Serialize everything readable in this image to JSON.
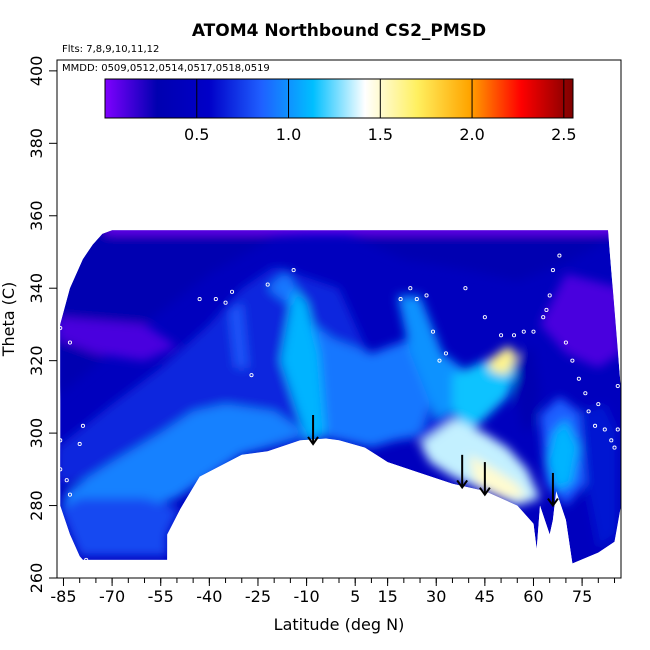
{
  "chart_data": {
    "type": "heatmap",
    "title": "ATOM4 Northbound CS2_PMSD",
    "notes": [
      "Flts: 7,8,9,10,11,12",
      "MMDD: 0509,0512,0514,0517,0518,0519"
    ],
    "xlabel": "Latitude (deg N)",
    "ylabel": "Theta (C)",
    "xlim": [
      -87,
      87
    ],
    "ylim": [
      260,
      403
    ],
    "x_ticks": [
      -85,
      -70,
      -55,
      -40,
      -25,
      -10,
      5,
      15,
      30,
      45,
      60,
      75
    ],
    "y_ticks": [
      260,
      280,
      300,
      320,
      340,
      360,
      380,
      400
    ],
    "colorbar": {
      "range": [
        0,
        2.55
      ],
      "ticks": [
        0.5,
        1.0,
        1.5,
        2.0,
        2.5
      ],
      "tick_labels": [
        "0.5",
        "1.0",
        "1.5",
        "2.0",
        "2.5"
      ],
      "colors": [
        "#7f00ff",
        "#0000b0",
        "#0000c8",
        "#1f5fff",
        "#00bfff",
        "#ffffff",
        "#fff060",
        "#ffa500",
        "#ff0000",
        "#7f0000"
      ]
    },
    "top_boundary": [
      [
        -86,
        330
      ],
      [
        -83,
        340
      ],
      [
        -79,
        348
      ],
      [
        -76,
        352
      ],
      [
        -73,
        355
      ],
      [
        -70,
        356
      ],
      [
        83,
        356
      ],
      [
        87,
        312
      ]
    ],
    "bottom_boundary": [
      [
        -86,
        280
      ],
      [
        -83,
        272
      ],
      [
        -80,
        266
      ],
      [
        -79,
        265
      ],
      [
        -53,
        265
      ],
      [
        -53,
        272
      ],
      [
        -49,
        279
      ],
      [
        -43,
        288
      ],
      [
        -30,
        294
      ],
      [
        -22,
        295
      ],
      [
        -12,
        298
      ],
      [
        -4,
        298.5
      ],
      [
        0,
        298
      ],
      [
        8,
        296
      ],
      [
        15,
        292
      ],
      [
        25,
        289
      ],
      [
        35,
        286
      ],
      [
        45,
        284
      ],
      [
        55,
        280
      ],
      [
        60,
        275
      ],
      [
        61,
        268
      ],
      [
        62,
        280
      ],
      [
        65,
        272
      ],
      [
        66,
        276
      ],
      [
        67,
        284
      ],
      [
        70,
        276
      ],
      [
        72,
        264
      ],
      [
        80,
        267
      ],
      [
        85,
        270
      ],
      [
        87,
        280
      ]
    ],
    "regions": [
      {
        "value": 0.3,
        "points": [
          [
            -87,
            310
          ],
          [
            -60,
            330
          ],
          [
            -40,
            344
          ],
          [
            -20,
            354
          ],
          [
            0,
            356
          ],
          [
            20,
            348
          ],
          [
            40,
            345
          ],
          [
            55,
            342
          ],
          [
            70,
            347
          ],
          [
            87,
            355
          ],
          [
            87,
            360
          ],
          [
            -87,
            360
          ]
        ]
      },
      {
        "value": 0.12,
        "points": [
          [
            -87,
            326
          ],
          [
            -75,
            322
          ],
          [
            -60,
            320
          ],
          [
            -50,
            324
          ],
          [
            -60,
            330
          ],
          [
            -87,
            332
          ]
        ]
      },
      {
        "value": 0.12,
        "points": [
          [
            62,
            330
          ],
          [
            70,
            322
          ],
          [
            80,
            318
          ],
          [
            87,
            322
          ],
          [
            87,
            340
          ],
          [
            70,
            344
          ]
        ]
      },
      {
        "value": 0.05,
        "points": [
          [
            -72,
            358
          ],
          [
            87,
            358
          ],
          [
            87,
            355
          ],
          [
            -72,
            355
          ]
        ]
      },
      {
        "value": 0.68,
        "points": [
          [
            -87,
            296
          ],
          [
            -70,
            308
          ],
          [
            -55,
            318
          ],
          [
            -40,
            330
          ],
          [
            -30,
            340
          ],
          [
            -20,
            346
          ],
          [
            0,
            340
          ],
          [
            10,
            320
          ],
          [
            20,
            312
          ],
          [
            30,
            310
          ],
          [
            40,
            300
          ],
          [
            30,
            298
          ],
          [
            0,
            298
          ],
          [
            -30,
            294
          ],
          [
            -87,
            286
          ]
        ]
      },
      {
        "value": 0.95,
        "points": [
          [
            -84,
            284
          ],
          [
            -70,
            292
          ],
          [
            -55,
            300
          ],
          [
            -45,
            306
          ],
          [
            -35,
            308
          ],
          [
            -20,
            306
          ],
          [
            -10,
            300
          ],
          [
            -30,
            294
          ],
          [
            -50,
            282
          ],
          [
            -70,
            276
          ],
          [
            -86,
            278
          ]
        ]
      },
      {
        "value": 0.78,
        "points": [
          [
            -86,
            279
          ],
          [
            -80,
            266
          ],
          [
            -53,
            266
          ],
          [
            -53,
            272
          ],
          [
            -49,
            279
          ],
          [
            -60,
            282
          ],
          [
            -80,
            282
          ]
        ]
      },
      {
        "value": 0.92,
        "points": [
          [
            -22,
            340
          ],
          [
            -16,
            345
          ],
          [
            -8,
            330
          ],
          [
            -5,
            300
          ],
          [
            0,
            298
          ],
          [
            10,
            296
          ],
          [
            25,
            300
          ],
          [
            32,
            318
          ],
          [
            22,
            326
          ],
          [
            10,
            322
          ],
          [
            -2,
            326
          ]
        ]
      },
      {
        "value": 1.1,
        "points": [
          [
            -14,
            340
          ],
          [
            -10,
            336
          ],
          [
            -6,
            322
          ],
          [
            -4,
            300
          ],
          [
            -10,
            298
          ],
          [
            -18,
            320
          ]
        ]
      },
      {
        "value": 0.82,
        "points": [
          [
            -34,
            334
          ],
          [
            -30,
            336
          ],
          [
            -28,
            318
          ],
          [
            -32,
            318
          ]
        ]
      },
      {
        "value": 1.0,
        "points": [
          [
            18,
            338
          ],
          [
            25,
            338
          ],
          [
            32,
            322
          ],
          [
            38,
            318
          ],
          [
            42,
            308
          ],
          [
            30,
            304
          ],
          [
            22,
            322
          ]
        ]
      },
      {
        "value": 1.15,
        "points": [
          [
            35,
            316
          ],
          [
            45,
            320
          ],
          [
            52,
            322
          ],
          [
            56,
            320
          ],
          [
            52,
            310
          ],
          [
            45,
            304
          ],
          [
            40,
            300
          ],
          [
            35,
            306
          ]
        ]
      },
      {
        "value": 1.35,
        "points": [
          [
            36,
            304
          ],
          [
            45,
            300
          ],
          [
            52,
            296
          ],
          [
            58,
            290
          ],
          [
            62,
            282
          ],
          [
            55,
            280
          ],
          [
            45,
            284
          ],
          [
            35,
            288
          ],
          [
            28,
            292
          ],
          [
            25,
            297
          ]
        ]
      },
      {
        "value": 1.5,
        "points": [
          [
            40,
            294
          ],
          [
            48,
            290
          ],
          [
            55,
            286
          ],
          [
            58,
            282
          ],
          [
            50,
            282
          ],
          [
            42,
            286
          ]
        ]
      },
      {
        "value": 1.62,
        "points": [
          [
            46,
            320
          ],
          [
            52,
            324
          ],
          [
            55,
            322
          ],
          [
            52,
            316
          ],
          [
            47,
            317
          ]
        ]
      },
      {
        "value": 0.3,
        "points": [
          [
            54,
            320
          ],
          [
            60,
            324
          ],
          [
            62,
            312
          ],
          [
            60,
            302
          ],
          [
            57,
            300
          ],
          [
            55,
            308
          ]
        ]
      },
      {
        "value": 0.85,
        "points": [
          [
            62,
            305
          ],
          [
            68,
            310
          ],
          [
            74,
            306
          ],
          [
            80,
            296
          ],
          [
            76,
            286
          ],
          [
            70,
            280
          ],
          [
            64,
            286
          ]
        ]
      },
      {
        "value": 0.62,
        "points": [
          [
            74,
            306
          ],
          [
            82,
            308
          ],
          [
            86,
            300
          ],
          [
            86,
            272
          ],
          [
            80,
            268
          ],
          [
            76,
            286
          ]
        ]
      },
      {
        "value": 1.1,
        "points": [
          [
            66,
            300
          ],
          [
            70,
            304
          ],
          [
            74,
            296
          ],
          [
            72,
            286
          ],
          [
            67,
            284
          ],
          [
            64,
            292
          ]
        ]
      }
    ],
    "obs_points": [
      [
        -86,
        329
      ],
      [
        -83,
        325
      ],
      [
        -86,
        298
      ],
      [
        -86,
        290
      ],
      [
        -83,
        283
      ],
      [
        -80,
        297
      ],
      [
        -79,
        302
      ],
      [
        -84,
        287
      ],
      [
        -78,
        265
      ],
      [
        -43,
        337
      ],
      [
        -38,
        337
      ],
      [
        -35,
        336
      ],
      [
        -33,
        339
      ],
      [
        -27,
        316
      ],
      [
        -22,
        341
      ],
      [
        -14,
        345
      ],
      [
        19,
        337
      ],
      [
        22,
        340
      ],
      [
        24,
        337
      ],
      [
        27,
        338
      ],
      [
        29,
        328
      ],
      [
        31,
        320
      ],
      [
        33,
        322
      ],
      [
        39,
        340
      ],
      [
        45,
        332
      ],
      [
        50,
        327
      ],
      [
        54,
        327
      ],
      [
        57,
        328
      ],
      [
        60,
        328
      ],
      [
        63,
        332
      ],
      [
        64,
        334
      ],
      [
        65,
        338
      ],
      [
        66,
        345
      ],
      [
        68,
        349
      ],
      [
        70,
        325
      ],
      [
        72,
        320
      ],
      [
        74,
        315
      ],
      [
        76,
        311
      ],
      [
        77,
        306
      ],
      [
        79,
        302
      ],
      [
        80,
        308
      ],
      [
        82,
        301
      ],
      [
        84,
        298
      ],
      [
        85,
        296
      ],
      [
        86,
        313
      ],
      [
        86,
        301
      ]
    ],
    "arrows": [
      {
        "lat": -8,
        "theta_tail": 305,
        "theta_head": 297
      },
      {
        "lat": 38,
        "theta_tail": 294,
        "theta_head": 285
      },
      {
        "lat": 45,
        "theta_tail": 292,
        "theta_head": 283
      },
      {
        "lat": 66,
        "theta_tail": 289,
        "theta_head": 280
      }
    ]
  }
}
